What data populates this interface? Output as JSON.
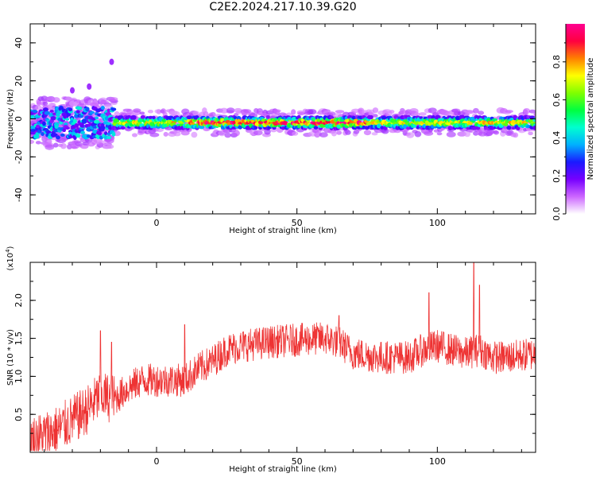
{
  "title": "C2E2.2024.217.10.39.G20",
  "chart_data": [
    {
      "type": "heatmap",
      "xlabel": "Height of straight line (km)",
      "ylabel": "Frequency (Hz)",
      "xlim": [
        -45,
        135
      ],
      "ylim": [
        -50,
        50
      ],
      "xticks": [
        0,
        50,
        100
      ],
      "xtick_labels": [
        "0",
        "50",
        "100"
      ],
      "yticks": [
        -40,
        -20,
        0,
        20,
        40
      ],
      "ytick_labels": [
        "-40",
        "-20",
        "0",
        "20",
        "40"
      ],
      "colorbar": {
        "label": "Normalized spectral amplitude",
        "range": [
          0.0,
          1.0
        ],
        "ticks": [
          0.0,
          0.2,
          0.4,
          0.6,
          0.8
        ],
        "tick_labels": [
          "0.0",
          "0.2",
          "0.4",
          "0.6",
          "0.8"
        ],
        "colors": [
          "#ffffff",
          "#cc66ff",
          "#7700ff",
          "#1a1aff",
          "#00b0ff",
          "#00ffd0",
          "#00ff40",
          "#80ff00",
          "#ffff00",
          "#ff8000",
          "#ff0040",
          "#ff0090"
        ]
      },
      "band": {
        "center_hz": -2,
        "half_width_hz": 3,
        "scatter_region_km": [
          -45,
          -15
        ],
        "scatter_spread_hz": 10,
        "outliers": [
          {
            "x": -16,
            "y": 30
          },
          {
            "x": -24,
            "y": 17
          },
          {
            "x": -30,
            "y": 15
          }
        ]
      }
    },
    {
      "type": "line",
      "xlabel": "Height of straight line (km)",
      "ylabel": "SNR (10 * v/v)",
      "y_multiplier_label": "(x10^4)",
      "xlim": [
        -45,
        135
      ],
      "ylim": [
        0,
        2.5
      ],
      "xticks": [
        0,
        50,
        100
      ],
      "xtick_labels": [
        "0",
        "50",
        "100"
      ],
      "yticks": [
        0.5,
        1.0,
        1.5,
        2.0
      ],
      "ytick_labels": [
        "0.5",
        "1.0",
        "1.5",
        "2.0"
      ],
      "line_color": "#ee3333",
      "envelope": [
        {
          "x": -45,
          "y": 0.15
        },
        {
          "x": -35,
          "y": 0.3
        },
        {
          "x": -25,
          "y": 0.55
        },
        {
          "x": -20,
          "y": 0.75
        },
        {
          "x": -15,
          "y": 0.7
        },
        {
          "x": -10,
          "y": 0.85
        },
        {
          "x": -5,
          "y": 0.95
        },
        {
          "x": 0,
          "y": 0.95
        },
        {
          "x": 10,
          "y": 0.95
        },
        {
          "x": 15,
          "y": 1.1
        },
        {
          "x": 20,
          "y": 1.2
        },
        {
          "x": 25,
          "y": 1.35
        },
        {
          "x": 30,
          "y": 1.4
        },
        {
          "x": 40,
          "y": 1.45
        },
        {
          "x": 50,
          "y": 1.48
        },
        {
          "x": 60,
          "y": 1.5
        },
        {
          "x": 65,
          "y": 1.45
        },
        {
          "x": 70,
          "y": 1.3
        },
        {
          "x": 80,
          "y": 1.25
        },
        {
          "x": 90,
          "y": 1.25
        },
        {
          "x": 95,
          "y": 1.35
        },
        {
          "x": 100,
          "y": 1.4
        },
        {
          "x": 105,
          "y": 1.35
        },
        {
          "x": 110,
          "y": 1.3
        },
        {
          "x": 115,
          "y": 1.35
        },
        {
          "x": 120,
          "y": 1.25
        },
        {
          "x": 125,
          "y": 1.25
        },
        {
          "x": 135,
          "y": 1.3
        }
      ],
      "noise_amplitude": 0.22,
      "peaks": [
        {
          "x": -20,
          "y": 1.6
        },
        {
          "x": -16,
          "y": 1.45
        },
        {
          "x": 10,
          "y": 1.68
        },
        {
          "x": 65,
          "y": 1.8
        },
        {
          "x": 97,
          "y": 2.1
        },
        {
          "x": 113,
          "y": 2.5
        },
        {
          "x": 115,
          "y": 2.2
        }
      ]
    }
  ]
}
